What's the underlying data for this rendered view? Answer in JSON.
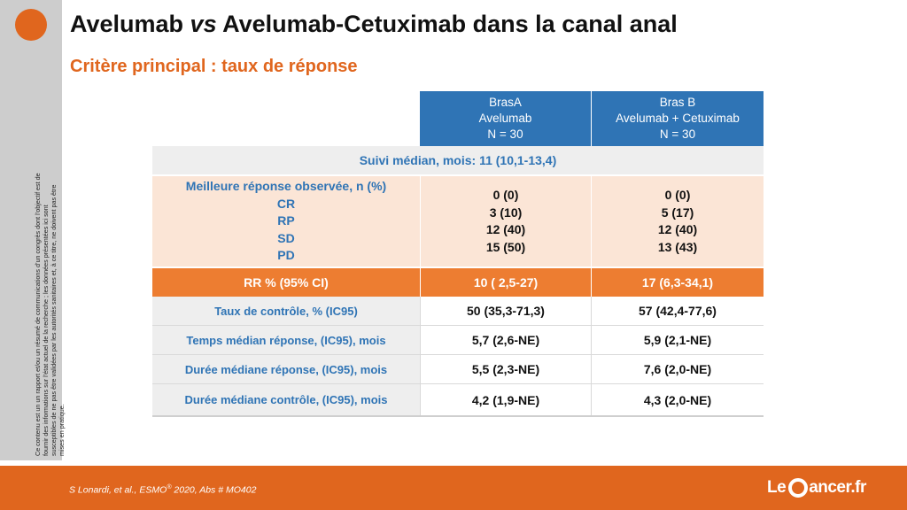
{
  "slide": {
    "title_part1": "Avelumab ",
    "title_vs": "vs",
    "title_part2": " Avelumab-Cetuximab dans la canal anal",
    "subtitle": "Critère principal : taux de réponse"
  },
  "sidebar": {
    "disclaimer": "Ce contenu est un un rapport et/ou un résumé de communications d’un congrès dont l’objectif est de fournir des informations sur l’état actuel de la recherche ; les données présentées ici sont susceptibles de ne pas être validées par les autorités sanitaires et, à ce titre, ne doivent pas être mises en pratique."
  },
  "table": {
    "arm_a": {
      "line1": "BrasA",
      "line2": "Avelumab",
      "line3": "N = 30"
    },
    "arm_b": {
      "line1": "Bras B",
      "line2": "Avelumab + Cetuximab",
      "line3": "N = 30"
    },
    "followup": "Suivi médian, mois: 11 (10,1-13,4)",
    "best_response": {
      "label": "Meilleure réponse observée, n (%)",
      "categories": [
        "CR",
        "RP",
        "SD",
        "PD"
      ],
      "arm_a": [
        "0 (0)",
        "3 (10)",
        "12 (40)",
        "15 (50)"
      ],
      "arm_b": [
        "0 (0)",
        "5 (17)",
        "12 (40)",
        "13 (43)"
      ]
    },
    "rr": {
      "label": "RR % (95% CI)",
      "arm_a": "10 ( 2,5-27)",
      "arm_b": "17 (6,3-34,1)"
    },
    "rows": [
      {
        "label": "Taux de contrôle, % (IC95)",
        "arm_a": "50 (35,3-71,3)",
        "arm_b": "57 (42,4-77,6)"
      },
      {
        "label": "Temps médian réponse, (IC95), mois",
        "arm_a": "5,7 (2,6-NE)",
        "arm_b": "5,9 (2,1-NE)"
      },
      {
        "label": "Durée médiane réponse, (IC95), mois",
        "arm_a": "5,5 (2,3-NE)",
        "arm_b": "7,6 (2,0-NE)"
      },
      {
        "label": "Durée médiane contrôle, (IC95), mois",
        "arm_a": "4,2 (1,9-NE)",
        "arm_b": "4,3 (2,0-NE)"
      }
    ]
  },
  "footer": {
    "citation_authors": "S Lonardi,  et al., ",
    "citation_congress": "ESMO",
    "citation_reg": "®",
    "citation_rest": " 2020, Abs # MO402",
    "logo_left": "Le",
    "logo_right": "ancer.fr"
  },
  "colors": {
    "accent_orange": "#e0661e",
    "header_blue": "#2f74b5",
    "rr_orange": "#ed7d31",
    "response_bg": "#fbe5d6"
  }
}
